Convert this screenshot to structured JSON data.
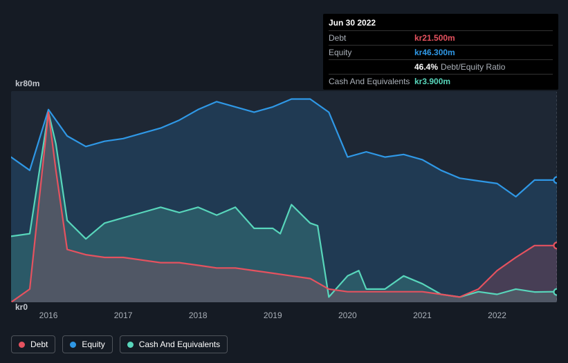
{
  "tooltip": {
    "date": "Jun 30 2022",
    "rows": [
      {
        "label": "Debt",
        "value": "kr21.500m",
        "color": "#e6525f"
      },
      {
        "label": "Equity",
        "value": "kr46.300m",
        "color": "#2f98e6"
      },
      {
        "label": "",
        "value": "46.4%",
        "extra": "Debt/Equity Ratio",
        "color": "#ffffff"
      },
      {
        "label": "Cash And Equivalents",
        "value": "kr3.900m",
        "color": "#58d6bb"
      }
    ]
  },
  "chart": {
    "type": "area",
    "background_color": "#151b24",
    "plot_background": "rgba(40,52,68,0.5)",
    "y_axis": {
      "min": 0,
      "max": 80,
      "top_label": "kr80m",
      "bottom_label": "kr0"
    },
    "x_axis": {
      "min": 2015.5,
      "max": 2022.8,
      "ticks": [
        {
          "pos": 2016,
          "label": "2016"
        },
        {
          "pos": 2017,
          "label": "2017"
        },
        {
          "pos": 2018,
          "label": "2018"
        },
        {
          "pos": 2019,
          "label": "2019"
        },
        {
          "pos": 2020,
          "label": "2020"
        },
        {
          "pos": 2021,
          "label": "2021"
        },
        {
          "pos": 2022,
          "label": "2022"
        }
      ]
    },
    "cursor_x": 2022.8,
    "series": [
      {
        "name": "Equity",
        "color": "#2f98e6",
        "area_fill": "rgba(47,152,230,0.18)",
        "data": [
          [
            2015.5,
            55
          ],
          [
            2015.75,
            50
          ],
          [
            2016.0,
            73
          ],
          [
            2016.25,
            63
          ],
          [
            2016.5,
            59
          ],
          [
            2016.75,
            61
          ],
          [
            2017.0,
            62
          ],
          [
            2017.25,
            64
          ],
          [
            2017.5,
            66
          ],
          [
            2017.75,
            69
          ],
          [
            2018.0,
            73
          ],
          [
            2018.25,
            76
          ],
          [
            2018.5,
            74
          ],
          [
            2018.75,
            72
          ],
          [
            2019.0,
            74
          ],
          [
            2019.25,
            77
          ],
          [
            2019.5,
            77
          ],
          [
            2019.75,
            72
          ],
          [
            2020.0,
            55
          ],
          [
            2020.25,
            57
          ],
          [
            2020.5,
            55
          ],
          [
            2020.75,
            56
          ],
          [
            2021.0,
            54
          ],
          [
            2021.25,
            50
          ],
          [
            2021.5,
            47
          ],
          [
            2021.75,
            46
          ],
          [
            2022.0,
            45
          ],
          [
            2022.25,
            40
          ],
          [
            2022.5,
            46.3
          ],
          [
            2022.75,
            46.3
          ],
          [
            2022.8,
            46.3
          ]
        ]
      },
      {
        "name": "Cash And Equivalents",
        "color": "#58d6bb",
        "area_fill": "rgba(88,214,187,0.20)",
        "data": [
          [
            2015.5,
            25
          ],
          [
            2015.75,
            26
          ],
          [
            2016.0,
            72
          ],
          [
            2016.1,
            60
          ],
          [
            2016.25,
            31
          ],
          [
            2016.5,
            24
          ],
          [
            2016.75,
            30
          ],
          [
            2017.0,
            32
          ],
          [
            2017.25,
            34
          ],
          [
            2017.5,
            36
          ],
          [
            2017.75,
            34
          ],
          [
            2018.0,
            36
          ],
          [
            2018.25,
            33
          ],
          [
            2018.5,
            36
          ],
          [
            2018.75,
            28
          ],
          [
            2019.0,
            28
          ],
          [
            2019.1,
            26
          ],
          [
            2019.25,
            37
          ],
          [
            2019.5,
            30
          ],
          [
            2019.6,
            29
          ],
          [
            2019.75,
            2
          ],
          [
            2020.0,
            10
          ],
          [
            2020.15,
            12
          ],
          [
            2020.25,
            5
          ],
          [
            2020.5,
            5
          ],
          [
            2020.75,
            10
          ],
          [
            2021.0,
            7
          ],
          [
            2021.25,
            3
          ],
          [
            2021.5,
            2
          ],
          [
            2021.75,
            4
          ],
          [
            2022.0,
            3
          ],
          [
            2022.25,
            5
          ],
          [
            2022.5,
            3.9
          ],
          [
            2022.75,
            4
          ],
          [
            2022.8,
            3.9
          ]
        ]
      },
      {
        "name": "Debt",
        "color": "#e6525f",
        "area_fill": "rgba(230,82,95,0.20)",
        "data": [
          [
            2015.5,
            0
          ],
          [
            2015.75,
            5
          ],
          [
            2016.0,
            72
          ],
          [
            2016.1,
            50
          ],
          [
            2016.25,
            20
          ],
          [
            2016.5,
            18
          ],
          [
            2016.75,
            17
          ],
          [
            2017.0,
            17
          ],
          [
            2017.25,
            16
          ],
          [
            2017.5,
            15
          ],
          [
            2017.75,
            15
          ],
          [
            2018.0,
            14
          ],
          [
            2018.25,
            13
          ],
          [
            2018.5,
            13
          ],
          [
            2018.75,
            12
          ],
          [
            2019.0,
            11
          ],
          [
            2019.25,
            10
          ],
          [
            2019.5,
            9
          ],
          [
            2019.75,
            5
          ],
          [
            2020.0,
            4
          ],
          [
            2020.25,
            4
          ],
          [
            2020.5,
            4
          ],
          [
            2020.75,
            4
          ],
          [
            2021.0,
            4
          ],
          [
            2021.25,
            3
          ],
          [
            2021.5,
            2
          ],
          [
            2021.75,
            5
          ],
          [
            2022.0,
            12
          ],
          [
            2022.25,
            17
          ],
          [
            2022.5,
            21.5
          ],
          [
            2022.75,
            21.5
          ],
          [
            2022.8,
            21.5
          ]
        ]
      }
    ],
    "markers": [
      {
        "x": 2022.8,
        "y": 46.3,
        "color": "#2f98e6"
      },
      {
        "x": 2022.8,
        "y": 21.5,
        "color": "#e6525f"
      },
      {
        "x": 2022.8,
        "y": 3.9,
        "color": "#58d6bb"
      }
    ]
  },
  "legend": [
    {
      "label": "Debt",
      "color": "#e6525f"
    },
    {
      "label": "Equity",
      "color": "#2f98e6"
    },
    {
      "label": "Cash And Equivalents",
      "color": "#58d6bb"
    }
  ]
}
